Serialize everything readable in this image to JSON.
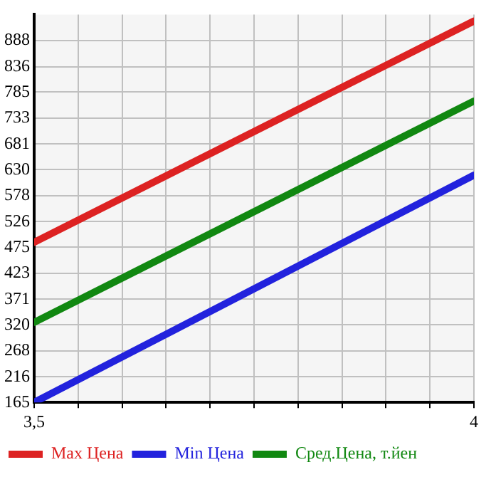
{
  "chart_data": {
    "type": "line",
    "x": [
      3.5,
      4
    ],
    "xlim": [
      3.5,
      4
    ],
    "xticks": [
      {
        "value": 3.5,
        "label": "3,5"
      },
      {
        "value": 3.55,
        "label": null
      },
      {
        "value": 3.6,
        "label": null
      },
      {
        "value": 3.65,
        "label": null
      },
      {
        "value": 3.7,
        "label": null
      },
      {
        "value": 3.75,
        "label": null
      },
      {
        "value": 3.8,
        "label": null
      },
      {
        "value": 3.85,
        "label": null
      },
      {
        "value": 3.9,
        "label": null
      },
      {
        "value": 3.95,
        "label": null
      },
      {
        "value": 4,
        "label": "4"
      }
    ],
    "ylim": [
      165,
      940
    ],
    "yticks": [
      165,
      216,
      268,
      320,
      371,
      423,
      475,
      526,
      578,
      630,
      681,
      733,
      785,
      836,
      888
    ],
    "series": [
      {
        "name": "Max Цена",
        "color": "#dd2222",
        "values": [
          485,
          927
        ]
      },
      {
        "name": "Min Цена",
        "color": "#2222dd",
        "values": [
          165,
          619
        ]
      },
      {
        "name": "Сред.Цена, т.йен",
        "color": "#118811",
        "values": [
          325,
          767
        ]
      }
    ],
    "grid": true,
    "legend": "bottom",
    "marker": "none",
    "line_style": "solid"
  }
}
